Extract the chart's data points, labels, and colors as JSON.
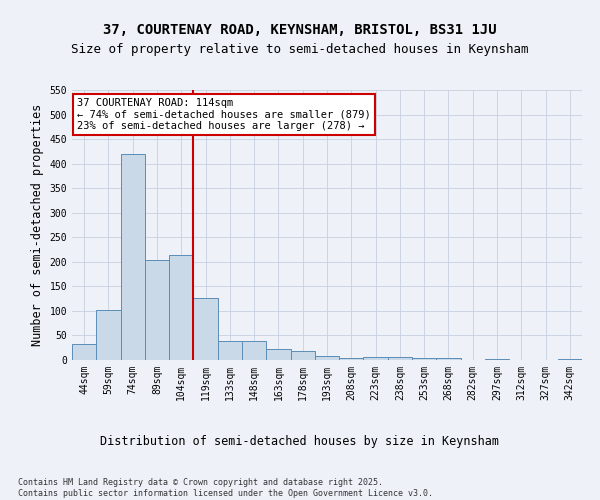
{
  "title_line1": "37, COURTENAY ROAD, KEYNSHAM, BRISTOL, BS31 1JU",
  "title_line2": "Size of property relative to semi-detached houses in Keynsham",
  "xlabel": "Distribution of semi-detached houses by size in Keynsham",
  "ylabel": "Number of semi-detached properties",
  "categories": [
    "44sqm",
    "59sqm",
    "74sqm",
    "89sqm",
    "104sqm",
    "119sqm",
    "133sqm",
    "148sqm",
    "163sqm",
    "178sqm",
    "193sqm",
    "208sqm",
    "223sqm",
    "238sqm",
    "253sqm",
    "268sqm",
    "282sqm",
    "297sqm",
    "312sqm",
    "327sqm",
    "342sqm"
  ],
  "values": [
    33,
    101,
    420,
    204,
    214,
    126,
    38,
    38,
    22,
    19,
    9,
    5,
    6,
    7,
    5,
    4,
    1,
    2,
    1,
    0,
    3
  ],
  "bar_color": "#c9d9e8",
  "bar_edge_color": "#5b8db8",
  "vline_index": 4,
  "vline_color": "#cc0000",
  "annotation_box_text": "37 COURTENAY ROAD: 114sqm\n← 74% of semi-detached houses are smaller (879)\n23% of semi-detached houses are larger (278) →",
  "annotation_box_color": "#cc0000",
  "annotation_box_fill": "#ffffff",
  "ylim": [
    0,
    550
  ],
  "yticks": [
    0,
    50,
    100,
    150,
    200,
    250,
    300,
    350,
    400,
    450,
    500,
    550
  ],
  "footer_text": "Contains HM Land Registry data © Crown copyright and database right 2025.\nContains public sector information licensed under the Open Government Licence v3.0.",
  "bg_color": "#eef2f8",
  "plot_bg_color": "#eef2f8",
  "grid_color": "#c8d0de",
  "title_fontsize": 10,
  "subtitle_fontsize": 9,
  "tick_fontsize": 7,
  "label_fontsize": 8.5,
  "footer_fontsize": 6,
  "annotation_fontsize": 7.5
}
